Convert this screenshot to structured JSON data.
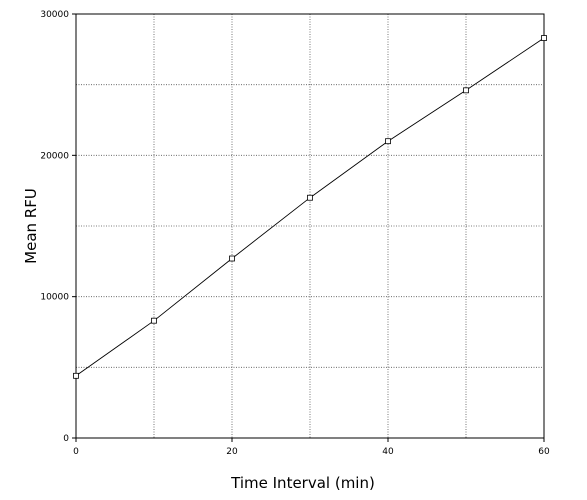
{
  "chart_data": {
    "type": "line",
    "title": "",
    "xlabel": "Time Interval (min)",
    "ylabel": "Mean RFU",
    "xlim": [
      0,
      60
    ],
    "ylim": [
      0,
      30000
    ],
    "x_ticks": [
      0,
      20,
      40,
      60
    ],
    "y_ticks": [
      0,
      10000,
      20000,
      30000
    ],
    "x_grid": [
      0,
      10,
      20,
      30,
      40,
      50,
      60
    ],
    "y_grid": [
      0,
      5000,
      10000,
      15000,
      20000,
      25000,
      30000
    ],
    "grid": true,
    "series": [
      {
        "x": [
          0,
          10,
          20,
          30,
          40,
          50,
          60
        ],
        "values": [
          4400,
          8300,
          12700,
          17000,
          21000,
          24600,
          28300
        ]
      }
    ],
    "colors": {
      "line": "#000000",
      "grid": "#555555"
    }
  }
}
